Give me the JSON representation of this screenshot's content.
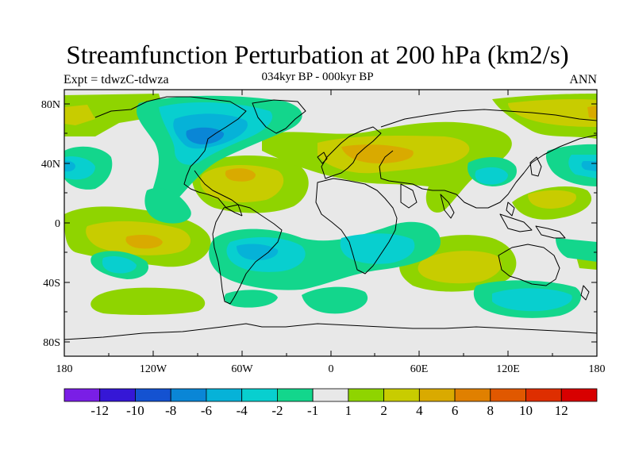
{
  "header": {
    "title": "Streamfunction Perturbation at 200 hPa (km2/s)",
    "left_label": "Expt = tdwzC-tdwza",
    "center_label": "034kyr BP - 000kyr BP",
    "right_label": "ANN"
  },
  "axes": {
    "lat_ticks": [
      "80N",
      "40N",
      "0",
      "40S",
      "80S"
    ],
    "lon_ticks": [
      "180",
      "120W",
      "60W",
      "0",
      "60E",
      "120E",
      "180"
    ]
  },
  "colorbar": {
    "labels": [
      "-12",
      "-10",
      "-8",
      "-6",
      "-4",
      "-2",
      "-1",
      "1",
      "2",
      "4",
      "6",
      "8",
      "10",
      "12"
    ],
    "colors": [
      "#7a1ee6",
      "#3517d6",
      "#1452d1",
      "#0a86d6",
      "#06b2d8",
      "#08cfcf",
      "#13d68c",
      "#e8e8e8",
      "#8fd400",
      "#c8cc00",
      "#d9aa00",
      "#e08000",
      "#e05800",
      "#de2e00",
      "#d80000"
    ]
  }
}
